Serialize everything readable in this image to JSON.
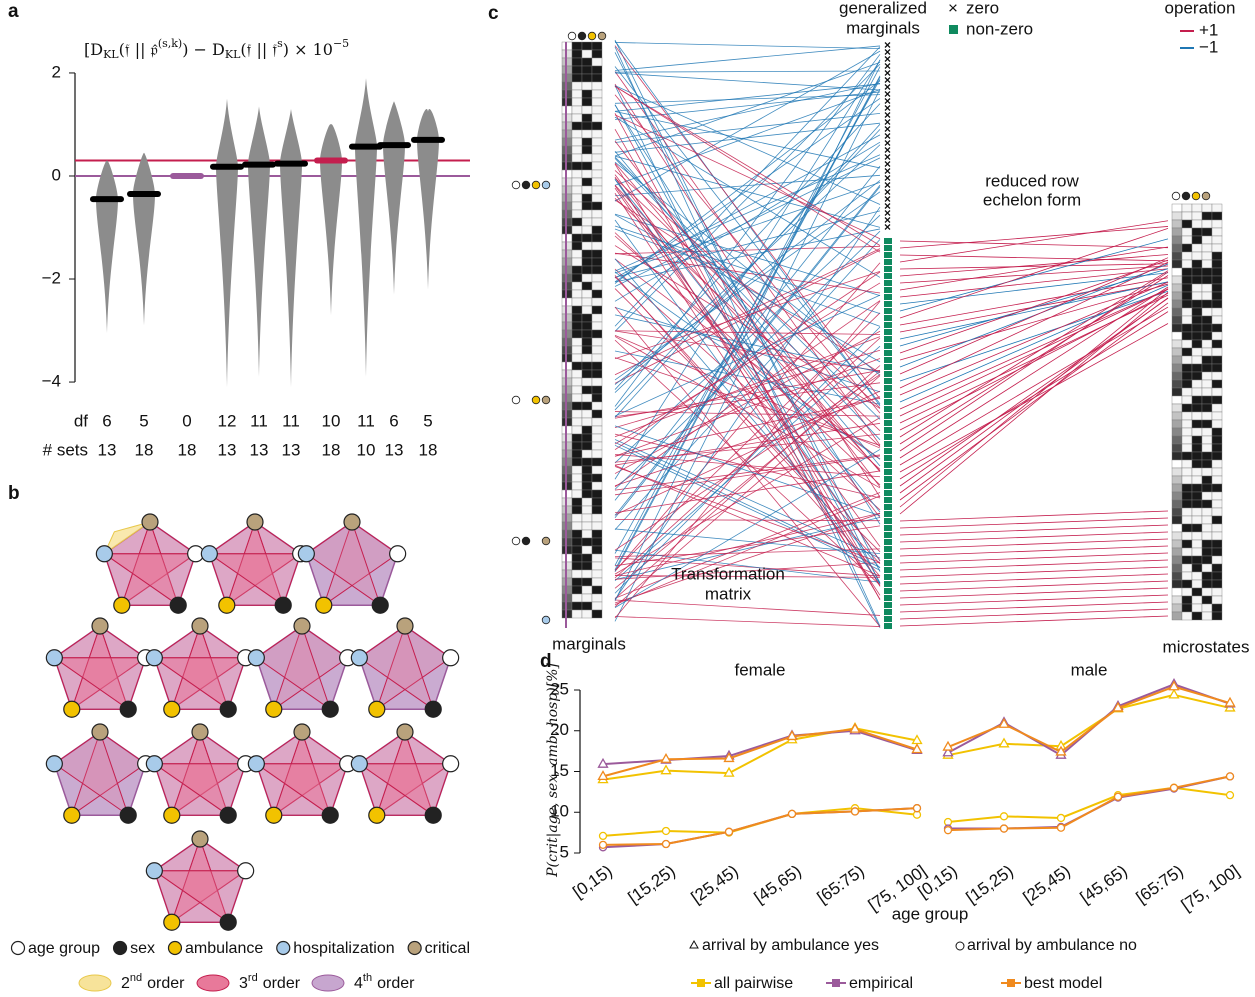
{
  "panel_labels": {
    "a": "a",
    "b": "b",
    "c": "c",
    "d": "d"
  },
  "chart_data": [
    {
      "type": "violin",
      "title": [
        "[D",
        "KL",
        "(𝔣 || 𝔭̂",
        "(s,k)",
        ") − D",
        "KL",
        "(𝔣 || 𝔣",
        "s",
        ") × 10",
        "−5"
      ],
      "values": [
        -0.45,
        -0.35,
        0,
        0.18,
        0.22,
        0.24,
        0.3,
        0.57,
        0.6,
        0.7
      ],
      "colors": [
        "#000000",
        "#000000",
        "#9b5a9b",
        "#000000",
        "#000000",
        "#000000",
        "#c41e4e",
        "#000000",
        "#000000",
        "#000000"
      ],
      "ranges": [
        [
          -3.05,
          0.3
        ],
        [
          -2.9,
          0.45
        ],
        null,
        [
          -4.1,
          1.5
        ],
        [
          -3.9,
          1.35
        ],
        [
          -4.1,
          1.3
        ],
        [
          -2.7,
          1.0
        ],
        [
          -3.9,
          1.9
        ],
        [
          -2.3,
          1.45
        ],
        [
          -2.2,
          1.25
        ]
      ],
      "df_label": "df",
      "df": [
        6,
        5,
        0,
        12,
        11,
        11,
        10,
        11,
        6,
        5
      ],
      "sets_label": "# sets",
      "sets": [
        13,
        18,
        18,
        13,
        13,
        13,
        18,
        10,
        13,
        18
      ],
      "hlines": [
        {
          "value": 0.3,
          "color": "#c41e4e"
        },
        {
          "value": 0,
          "color": "#9b5a9b"
        }
      ],
      "ylim": [
        -4.3,
        2.3
      ],
      "yticks": [
        {
          "value": -4,
          "label": "−4"
        },
        {
          "value": -2,
          "label": "−2"
        },
        0,
        2
      ]
    },
    {
      "type": "line",
      "title": "female",
      "ylabel": "P(crit|age, sex, amb, hosp)[%]",
      "xlabel": "age group",
      "categories": [
        "[0,15)",
        "[15,25)",
        "[25,45)",
        "[45,65)",
        "[65:75)",
        "[75, 100]"
      ],
      "ylim": [
        4,
        26
      ],
      "yticks": [
        5,
        10,
        15,
        20,
        25
      ],
      "marker_labels": {
        "triangle": "arrival by ambulance yes",
        "circle": "arrival by ambulance no"
      },
      "series": [
        {
          "name": "all pairwise",
          "color": "#f2c200",
          "marker": "triangle",
          "values": [
            14,
            15.1,
            14.8,
            18.9,
            20.3,
            18.8
          ]
        },
        {
          "name": "empirical",
          "color": "#9b5a9b",
          "marker": "triangle",
          "values": [
            15.9,
            16.4,
            16.9,
            19.4,
            20,
            17.6
          ]
        },
        {
          "name": "best model",
          "color": "#f08a1e",
          "marker": "triangle",
          "values": [
            14.4,
            16.5,
            16.6,
            19.3,
            20.2,
            17.7
          ]
        },
        {
          "name": "all pairwise",
          "color": "#f2c200",
          "marker": "circle",
          "values": [
            7.1,
            7.7,
            7.5,
            9.8,
            10.5,
            9.7
          ]
        },
        {
          "name": "empirical",
          "color": "#9b5a9b",
          "marker": "circle",
          "values": [
            5.7,
            6.1,
            7.6,
            9.8,
            10.1,
            10.5
          ]
        },
        {
          "name": "best model",
          "color": "#f08a1e",
          "marker": "circle",
          "values": [
            6,
            6.1,
            7.6,
            9.8,
            10.1,
            10.5
          ]
        }
      ]
    },
    {
      "type": "line",
      "title": "male",
      "categories": [
        "[0,15)",
        "[15,25)",
        "[25,45)",
        "[45,65)",
        "[65:75)",
        "[75, 100]"
      ],
      "ylim": [
        4,
        26
      ],
      "series": [
        {
          "name": "all pairwise",
          "color": "#f2c200",
          "marker": "triangle",
          "values": [
            17,
            18.4,
            18.1,
            22.7,
            24.4,
            22.8
          ]
        },
        {
          "name": "empirical",
          "color": "#9b5a9b",
          "marker": "triangle",
          "values": [
            17.3,
            21,
            17,
            23,
            25.7,
            23.3
          ]
        },
        {
          "name": "best model",
          "color": "#f08a1e",
          "marker": "triangle",
          "values": [
            18,
            20.8,
            17.4,
            22.8,
            25.4,
            23.4
          ]
        },
        {
          "name": "all pairwise",
          "color": "#f2c200",
          "marker": "circle",
          "values": [
            8.8,
            9.5,
            9.3,
            12.1,
            13,
            12.1
          ]
        },
        {
          "name": "empirical",
          "color": "#9b5a9b",
          "marker": "circle",
          "values": [
            8,
            8,
            8.2,
            11.8,
            12.9,
            14.4
          ]
        },
        {
          "name": "best model",
          "color": "#f08a1e",
          "marker": "circle",
          "values": [
            7.8,
            8,
            8.1,
            11.9,
            13,
            14.4
          ]
        }
      ]
    }
  ],
  "hypergraph_legend": {
    "nodes": [
      {
        "label": "age group",
        "color": "#ffffff"
      },
      {
        "label": "sex",
        "color": "#222222"
      },
      {
        "label": "ambulance",
        "color": "#f2c200"
      },
      {
        "label": "hospitalization",
        "color": "#a8cbea"
      },
      {
        "label": "critical",
        "color": "#b9a27c"
      }
    ],
    "orders": [
      {
        "number": "2",
        "suffix": "nd",
        "label": "order",
        "color": "#f7e39a"
      },
      {
        "number": "3",
        "suffix": "rd",
        "label": "order",
        "color": "#e8799a"
      },
      {
        "number": "4",
        "suffix": "th",
        "label": "order",
        "color": "#c7a6cf"
      }
    ]
  },
  "transformation": {
    "marginals_title": [
      "generalized",
      "marginals"
    ],
    "zero_symbol": "×",
    "zero_label": "zero",
    "nonzero_label": "non-zero",
    "nonzero_color": "#0f8a5f",
    "operation_title": "operation",
    "operations": [
      {
        "label": "+1",
        "color": "#c41e4e"
      },
      {
        "label": "−1",
        "color": "#1f77b4"
      }
    ],
    "rref_title": [
      "reduced row",
      "echelon form"
    ],
    "matrix_title": [
      "Transformation",
      "matrix"
    ],
    "left_label": "marginals",
    "right_label": "microstates"
  }
}
